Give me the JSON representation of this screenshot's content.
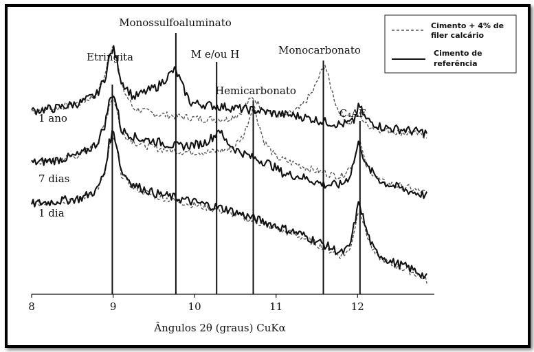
{
  "chart_data": {
    "type": "line",
    "title": "",
    "xlabel": "Ângulos 2θ (graus) CuKα",
    "ylabel": "",
    "xlim": [
      8,
      12.9
    ],
    "ylim": [
      0,
      100
    ],
    "x_ticks": [
      8,
      9,
      10,
      11,
      12
    ],
    "x_tick_labels": [
      "8",
      "9",
      "10",
      "11",
      "12"
    ],
    "grid": false,
    "legend": {
      "placement": "top-right",
      "entries": [
        {
          "series": "filer",
          "label_lines": [
            "Cimento + 4% de",
            "filer calcário"
          ],
          "style": "dashed"
        },
        {
          "series": "reference",
          "label_lines": [
            "Cimento de",
            "referência"
          ],
          "style": "solid"
        }
      ]
    },
    "reference_lines": [
      {
        "name": "Etringita",
        "x": 8.99
      },
      {
        "name": "Monossulfoaluminato",
        "x": 9.77
      },
      {
        "name": "M e/ou H",
        "x": 10.27
      },
      {
        "name": "Hemicarbonato",
        "x": 10.72
      },
      {
        "name": "Monocarbonato",
        "x": 11.58
      },
      {
        "name": "C₄AF",
        "x": 12.03
      }
    ],
    "age_labels": [
      {
        "label": "1 ano",
        "curve": 0
      },
      {
        "label": "7 dias",
        "curve": 1
      },
      {
        "label": "1 dia",
        "curve": 2
      }
    ],
    "series": [
      {
        "id": "reference",
        "style": "solid",
        "color": "#111111",
        "curves": [
          {
            "x": [
              8.0,
              8.3,
              8.6,
              8.8,
              8.9,
              8.95,
              9.0,
              9.05,
              9.1,
              9.25,
              9.4,
              9.55,
              9.65,
              9.75,
              9.8,
              9.85,
              9.95,
              10.2,
              10.5,
              10.8,
              11.0,
              11.3,
              11.6,
              11.8,
              11.95,
              12.02,
              12.1,
              12.3,
              12.6,
              12.85
            ],
            "y": [
              67,
              68,
              70,
              73,
              79,
              86,
              90,
              85,
              78,
              72,
              74,
              76,
              79,
              82,
              80,
              76,
              70,
              69,
              68,
              67,
              66,
              65,
              63,
              62,
              63,
              69,
              64,
              61,
              60,
              59
            ]
          },
          {
            "x": [
              8.0,
              8.3,
              8.6,
              8.8,
              8.9,
              8.95,
              9.0,
              9.05,
              9.1,
              9.3,
              9.5,
              9.8,
              10.1,
              10.25,
              10.3,
              10.35,
              10.5,
              10.7,
              10.9,
              11.1,
              11.3,
              11.6,
              11.8,
              11.9,
              11.95,
              12.02,
              12.1,
              12.3,
              12.6,
              12.85
            ],
            "y": [
              48,
              49,
              51,
              55,
              62,
              70,
              74,
              68,
              60,
              57,
              56,
              54,
              55,
              58,
              61,
              57,
              53,
              50,
              48,
              44,
              43,
              40,
              40,
              43,
              48,
              56,
              47,
              41,
              38,
              36
            ]
          },
          {
            "x": [
              8.0,
              8.3,
              8.6,
              8.8,
              8.9,
              8.95,
              9.0,
              9.05,
              9.1,
              9.25,
              9.5,
              9.8,
              10.1,
              10.4,
              10.7,
              11.0,
              11.3,
              11.6,
              11.8,
              11.9,
              11.95,
              12.02,
              12.1,
              12.2,
              12.4,
              12.6,
              12.75,
              12.85
            ],
            "y": [
              33,
              34,
              35,
              38,
              45,
              55,
              60,
              54,
              45,
              40,
              37,
              35,
              33,
              31,
              28,
              25,
              22,
              18,
              15,
              17,
              24,
              34,
              24,
              16,
              12,
              10,
              8,
              6
            ]
          }
        ]
      },
      {
        "id": "filer",
        "style": "dashed",
        "color": "#555555",
        "curves": [
          {
            "x": [
              8.0,
              8.3,
              8.6,
              8.8,
              8.9,
              8.95,
              9.0,
              9.05,
              9.1,
              9.25,
              9.5,
              9.8,
              10.1,
              10.4,
              10.55,
              10.65,
              10.72,
              10.8,
              10.95,
              11.1,
              11.3,
              11.45,
              11.55,
              11.6,
              11.65,
              11.75,
              11.9,
              12.02,
              12.1,
              12.3,
              12.6,
              12.85
            ],
            "y": [
              67,
              68,
              70,
              73,
              80,
              87,
              92,
              86,
              76,
              68,
              66,
              65,
              64,
              64,
              66,
              70,
              72,
              69,
              66,
              65,
              68,
              74,
              81,
              84,
              78,
              68,
              62,
              66,
              62,
              60,
              59,
              58
            ]
          },
          {
            "x": [
              8.0,
              8.3,
              8.6,
              8.8,
              8.9,
              8.95,
              9.0,
              9.05,
              9.1,
              9.3,
              9.6,
              9.9,
              10.2,
              10.45,
              10.6,
              10.68,
              10.72,
              10.77,
              10.85,
              11.0,
              11.2,
              11.5,
              11.8,
              11.95,
              12.02,
              12.1,
              12.3,
              12.6,
              12.85
            ],
            "y": [
              48,
              49,
              51,
              55,
              62,
              69,
              73,
              67,
              59,
              55,
              53,
              52,
              52,
              53,
              58,
              65,
              70,
              64,
              56,
              50,
              48,
              45,
              43,
              48,
              57,
              47,
              41,
              39,
              37
            ]
          },
          {
            "x": [
              8.0,
              8.3,
              8.6,
              8.8,
              8.9,
              8.95,
              9.0,
              9.05,
              9.1,
              9.25,
              9.5,
              9.8,
              10.1,
              10.4,
              10.7,
              11.0,
              11.3,
              11.6,
              11.8,
              11.9,
              11.95,
              12.02,
              12.1,
              12.2,
              12.4,
              12.6,
              12.75,
              12.85
            ],
            "y": [
              33,
              34,
              35,
              38,
              44,
              53,
              58,
              52,
              44,
              39,
              36,
              34,
              32,
              30,
              27,
              24,
              21,
              17,
              14,
              16,
              22,
              32,
              23,
              15,
              11,
              9,
              7,
              5
            ]
          }
        ]
      }
    ]
  }
}
